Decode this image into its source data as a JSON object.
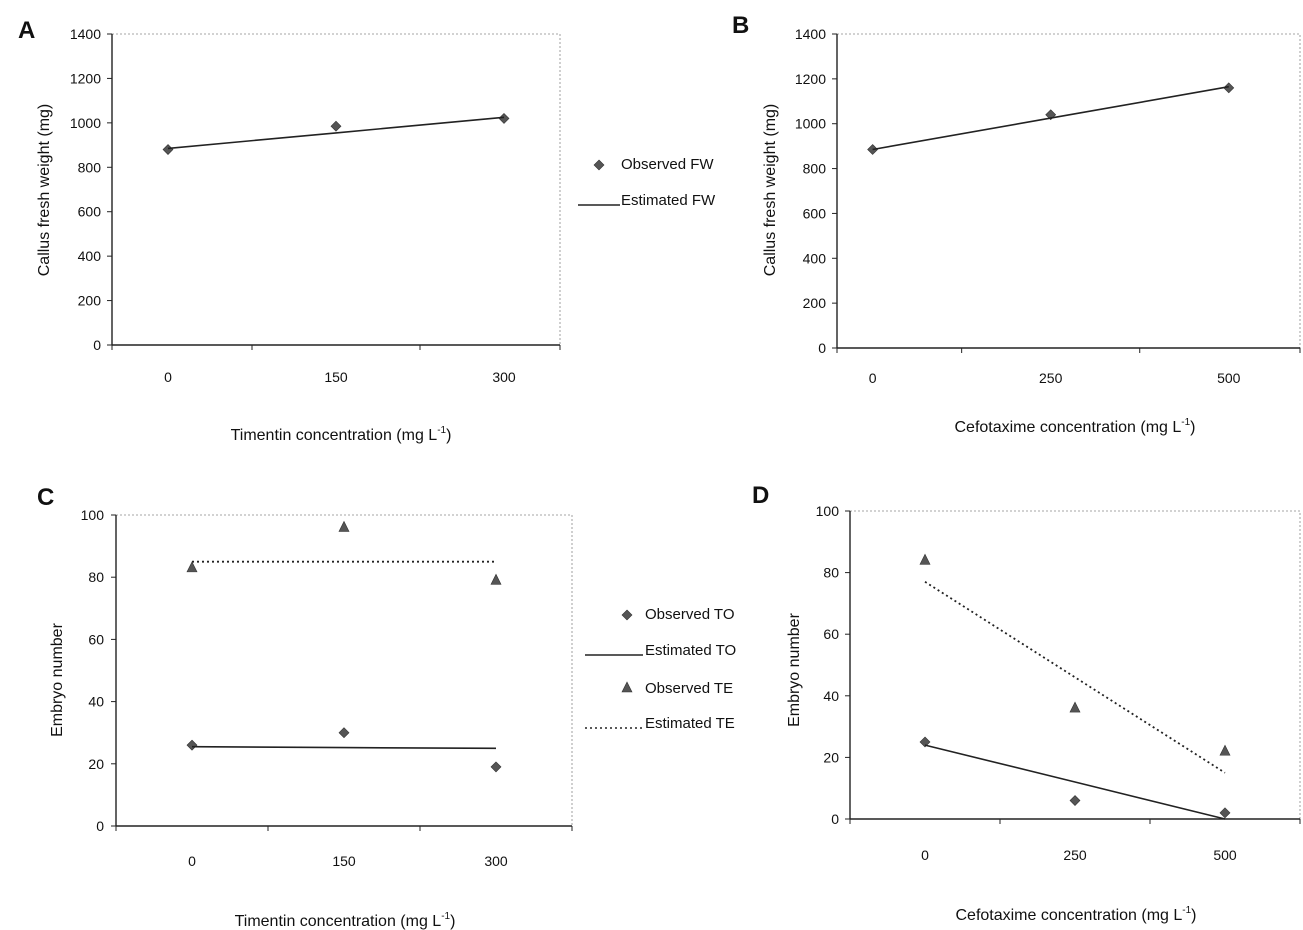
{
  "chart_data": [
    {
      "panel": "A",
      "type": "scatter",
      "xlabel": "Timentin concentration (mg L",
      "xlabel_sup": "-1",
      "xlabel_end": ")",
      "ylabel": "Callus fresh weight (mg)",
      "categories": [
        "0",
        "150",
        "300"
      ],
      "x": [
        0,
        150,
        300
      ],
      "xlim": [
        -50,
        350
      ],
      "ylim": [
        0,
        1400
      ],
      "yticks": [
        0,
        200,
        400,
        600,
        800,
        1000,
        1200,
        1400
      ],
      "grid": false,
      "series": [
        {
          "name": "Observed FW",
          "kind": "point",
          "marker": "diamond",
          "values": [
            880,
            985,
            1020
          ]
        },
        {
          "name": "Estimated FW",
          "kind": "line",
          "style": "solid",
          "values": [
            885,
            955,
            1025
          ]
        }
      ]
    },
    {
      "panel": "B",
      "type": "scatter",
      "xlabel": "Cefotaxime concentration (mg L",
      "xlabel_sup": "-1",
      "xlabel_end": ")",
      "ylabel": "Callus fresh weight (mg)",
      "categories": [
        "0",
        "250",
        "500"
      ],
      "x": [
        0,
        250,
        500
      ],
      "xlim": [
        -50,
        600
      ],
      "ylim": [
        0,
        1400
      ],
      "yticks": [
        0,
        200,
        400,
        600,
        800,
        1000,
        1200,
        1400
      ],
      "grid": false,
      "series": [
        {
          "name": "Observed FW",
          "kind": "point",
          "marker": "diamond",
          "values": [
            885,
            1040,
            1160
          ]
        },
        {
          "name": "Estimated FW",
          "kind": "line",
          "style": "solid",
          "values": [
            885,
            1025,
            1165
          ]
        }
      ]
    },
    {
      "panel": "C",
      "type": "scatter",
      "xlabel": "Timentin concentration (mg L",
      "xlabel_sup": "-1",
      "xlabel_end": ")",
      "ylabel": "Embryo number",
      "categories": [
        "0",
        "150",
        "300"
      ],
      "x": [
        0,
        150,
        300
      ],
      "xlim": [
        -75,
        375
      ],
      "ylim": [
        0,
        100
      ],
      "yticks": [
        0,
        20,
        40,
        60,
        80,
        100
      ],
      "grid": false,
      "series": [
        {
          "name": "Observed TO",
          "kind": "point",
          "marker": "diamond",
          "values": [
            26,
            30,
            19
          ]
        },
        {
          "name": "Estimated TO",
          "kind": "line",
          "style": "solid",
          "values": [
            25.5,
            25.2,
            25
          ]
        },
        {
          "name": "Observed TE",
          "kind": "point",
          "marker": "triangle",
          "values": [
            83,
            96,
            79
          ]
        },
        {
          "name": "Estimated TE",
          "kind": "line",
          "style": "dotted",
          "values": [
            85,
            85,
            85
          ]
        }
      ]
    },
    {
      "panel": "D",
      "type": "scatter",
      "xlabel": "Cefotaxime concentration (mg L",
      "xlabel_sup": "-1",
      "xlabel_end": ")",
      "ylabel": "Embryo number",
      "categories": [
        "0",
        "250",
        "500"
      ],
      "x": [
        0,
        250,
        500
      ],
      "xlim": [
        -125,
        625
      ],
      "ylim": [
        0,
        100
      ],
      "yticks": [
        0,
        20,
        40,
        60,
        80,
        100
      ],
      "grid": false,
      "series": [
        {
          "name": "Observed TO",
          "kind": "point",
          "marker": "diamond",
          "values": [
            25,
            6,
            2
          ]
        },
        {
          "name": "Estimated TO",
          "kind": "line",
          "style": "solid",
          "values": [
            24,
            12,
            0
          ]
        },
        {
          "name": "Observed TE",
          "kind": "point",
          "marker": "triangle",
          "values": [
            84,
            36,
            22
          ]
        },
        {
          "name": "Estimated TE",
          "kind": "line",
          "style": "dotted",
          "values": [
            77,
            46,
            15
          ]
        }
      ]
    }
  ],
  "legends": [
    {
      "entries": [
        {
          "label": "Observed FW",
          "symbol": "diamond"
        },
        {
          "label": "Estimated FW",
          "symbol": "solid-line"
        }
      ]
    },
    {
      "entries": [
        {
          "label": "Observed TO",
          "symbol": "diamond"
        },
        {
          "label": "Estimated TO",
          "symbol": "solid-line"
        },
        {
          "label": "Observed TE",
          "symbol": "triangle"
        },
        {
          "label": "Estimated TE",
          "symbol": "dotted-line"
        }
      ]
    }
  ],
  "colors": {
    "ink": "#222222",
    "marker": "#555555",
    "frame": "#888888",
    "background": "#ffffff"
  }
}
